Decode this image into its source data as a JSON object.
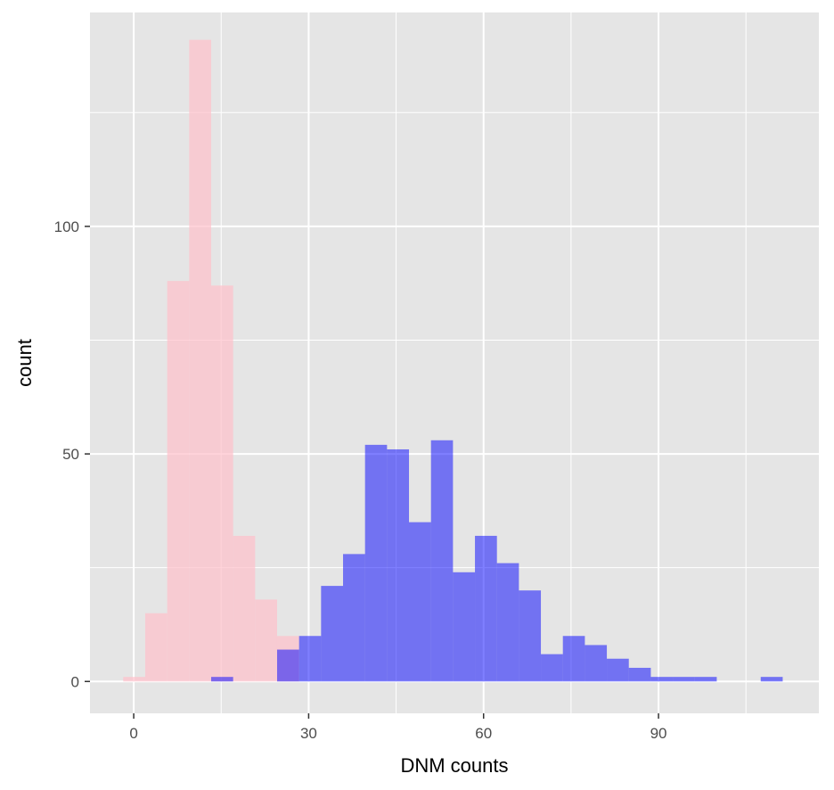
{
  "chart_data": {
    "type": "bar",
    "title": "",
    "xlabel": "DNM counts",
    "ylabel": "count",
    "xlim": [
      -7.5,
      117.5
    ],
    "ylim": [
      -7,
      147
    ],
    "x_ticks": [
      0,
      30,
      60,
      90
    ],
    "y_ticks": [
      0,
      50,
      100
    ],
    "x_tick_labels": [
      "0",
      "30",
      "60",
      "90"
    ],
    "y_tick_labels": [
      "0",
      "50",
      "100"
    ],
    "grid": true,
    "bin_width": 3.77,
    "series": [
      {
        "color": "#FFC0CB",
        "bins": [
          {
            "x_start": -1.8,
            "count": 1
          },
          {
            "x_start": 1.97,
            "count": 15
          },
          {
            "x_start": 5.74,
            "count": 88
          },
          {
            "x_start": 9.51,
            "count": 141
          },
          {
            "x_start": 13.28,
            "count": 87
          },
          {
            "x_start": 17.05,
            "count": 32
          },
          {
            "x_start": 20.82,
            "count": 18
          },
          {
            "x_start": 24.59,
            "count": 10
          }
        ]
      },
      {
        "color": "#0000FF",
        "bins": [
          {
            "x_start": 13.28,
            "count": 1
          },
          {
            "x_start": 24.59,
            "count": 7
          },
          {
            "x_start": 28.36,
            "count": 10
          },
          {
            "x_start": 32.13,
            "count": 21
          },
          {
            "x_start": 35.9,
            "count": 28
          },
          {
            "x_start": 39.67,
            "count": 52
          },
          {
            "x_start": 43.44,
            "count": 51
          },
          {
            "x_start": 47.21,
            "count": 35
          },
          {
            "x_start": 50.98,
            "count": 53
          },
          {
            "x_start": 54.75,
            "count": 24
          },
          {
            "x_start": 58.52,
            "count": 32
          },
          {
            "x_start": 62.29,
            "count": 26
          },
          {
            "x_start": 66.06,
            "count": 20
          },
          {
            "x_start": 69.83,
            "count": 6
          },
          {
            "x_start": 73.6,
            "count": 10
          },
          {
            "x_start": 77.37,
            "count": 8
          },
          {
            "x_start": 81.14,
            "count": 5
          },
          {
            "x_start": 84.91,
            "count": 3
          },
          {
            "x_start": 88.68,
            "count": 1
          },
          {
            "x_start": 92.45,
            "count": 1
          },
          {
            "x_start": 96.22,
            "count": 1
          },
          {
            "x_start": 107.53,
            "count": 1
          }
        ]
      }
    ],
    "colors": {
      "panel_bg": "#E5E5E5",
      "grid": "#FFFFFF",
      "tick_text": "#4D4D4D",
      "tick_mark": "#333333",
      "title_text": "#000000"
    }
  }
}
